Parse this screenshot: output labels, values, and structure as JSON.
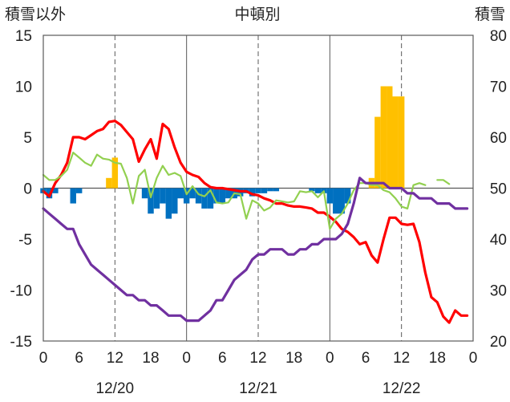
{
  "chart_data": {
    "type": "bar+line",
    "title": "中頓別",
    "left_axis_label": "積雪以外",
    "right_axis_label": "積雪",
    "left_ylim": [
      -15,
      15
    ],
    "right_ylim": [
      20,
      80
    ],
    "left_ticks": [
      "15",
      "10",
      "5",
      "0",
      "-5",
      "-10",
      "-15"
    ],
    "right_ticks": [
      "80",
      "70",
      "60",
      "50",
      "40",
      "30",
      "20"
    ],
    "x_ticks": [
      "0",
      "6",
      "12",
      "18",
      "0",
      "6",
      "12",
      "18",
      "0",
      "6",
      "12",
      "18",
      "0"
    ],
    "dates": [
      "12/20",
      "12/21",
      "12/22"
    ],
    "x_range_hours": [
      0,
      72
    ],
    "grid": "vertical dashed every 12h, solid at day boundaries, solid zero line",
    "series": [
      {
        "color": "#ff0000",
        "axis": "left",
        "kind": "line",
        "x": [
          0,
          1,
          2,
          3,
          4,
          5,
          6,
          7,
          8,
          9,
          10,
          11,
          12,
          13,
          14,
          15,
          16,
          17,
          18,
          19,
          20,
          21,
          22,
          23,
          24,
          25,
          26,
          27,
          28,
          29,
          30,
          31,
          32,
          33,
          34,
          35,
          36,
          37,
          38,
          39,
          40,
          41,
          42,
          43,
          44,
          45,
          46,
          47,
          48,
          49,
          50,
          51,
          52,
          53,
          54,
          55,
          56,
          57,
          58,
          59,
          60,
          61,
          62,
          63,
          64,
          65,
          66,
          67,
          68,
          69,
          70,
          71
        ],
        "values": [
          -0.3,
          -0.8,
          0.5,
          1.3,
          2.5,
          5.0,
          5.0,
          4.8,
          5.2,
          5.6,
          5.8,
          6.5,
          6.6,
          6.2,
          5.5,
          4.8,
          2.6,
          3.8,
          4.8,
          2.9,
          6.3,
          5.8,
          4.0,
          2.5,
          1.6,
          1.3,
          1.1,
          0.5,
          0.1,
          0.0,
          0.0,
          -0.1,
          -0.2,
          -0.3,
          -0.3,
          -0.6,
          -0.7,
          -1.0,
          -1.2,
          -1.5,
          -1.5,
          -1.7,
          -1.8,
          -1.8,
          -1.9,
          -2.0,
          -2.4,
          -2.4,
          -2.8,
          -3.3,
          -4.0,
          -4.3,
          -4.8,
          -5.5,
          -5.3,
          -6.6,
          -7.3,
          -5.0,
          -2.9,
          -2.9,
          -3.5,
          -3.6,
          -3.5,
          -5.3,
          -8.3,
          -10.7,
          -11.2,
          -12.6,
          -13.2,
          -12.0,
          -12.5,
          -12.5
        ],
        "name": ""
      },
      {
        "color": "#92d050",
        "axis": "left",
        "kind": "line",
        "x": [
          0,
          1,
          2,
          3,
          4,
          5,
          6,
          7,
          8,
          9,
          10,
          11,
          12,
          13,
          14,
          15,
          16,
          17,
          18,
          19,
          20,
          21,
          22,
          23,
          24,
          25,
          26,
          27,
          28,
          29,
          30,
          31,
          32,
          33,
          34,
          35,
          36,
          37,
          38,
          39,
          40,
          41,
          42,
          43,
          44,
          45,
          46,
          47,
          48,
          49,
          50,
          51,
          52,
          53,
          54,
          55,
          56,
          57,
          58,
          59,
          60,
          61,
          62,
          63,
          64,
          65,
          66,
          67,
          68,
          69,
          70,
          71
        ],
        "values": [
          1.3,
          0.8,
          0.8,
          1.2,
          1.8,
          3.5,
          3.0,
          2.5,
          2.2,
          3.3,
          2.9,
          2.8,
          2.5,
          2.4,
          1.0,
          -1.5,
          1.2,
          1.8,
          -0.9,
          1.0,
          2.2,
          1.3,
          1.5,
          1.2,
          -0.6,
          0.2,
          -0.6,
          -0.8,
          -0.2,
          -1.4,
          -1.5,
          -1.4,
          -0.5,
          -0.6,
          -3.0,
          -1.2,
          -1.5,
          -2.2,
          -1.9,
          -1.2,
          -1.3,
          -1.4,
          -1.3,
          -0.3,
          -0.4,
          -0.3,
          -0.9,
          -0.3,
          -4.0,
          -3.0,
          -2.5,
          -1.5,
          -0.2,
          0.5,
          0.5,
          0.3,
          0.3,
          -0.2,
          -0.4,
          -1.0,
          -1.8,
          -2.0,
          0.3,
          0.5,
          0.3,
          null,
          0.8,
          0.8,
          0.4,
          null,
          null,
          null
        ],
        "name": ""
      },
      {
        "color": "#7030a0",
        "axis": "right",
        "kind": "line",
        "x": [
          0,
          1,
          2,
          3,
          4,
          5,
          6,
          7,
          8,
          9,
          10,
          11,
          12,
          13,
          14,
          15,
          16,
          17,
          18,
          19,
          20,
          21,
          22,
          23,
          24,
          25,
          26,
          27,
          28,
          29,
          30,
          31,
          32,
          33,
          34,
          35,
          36,
          37,
          38,
          39,
          40,
          41,
          42,
          43,
          44,
          45,
          46,
          47,
          48,
          49,
          50,
          51,
          52,
          53,
          54,
          55,
          56,
          57,
          58,
          59,
          60,
          61,
          62,
          63,
          64,
          65,
          66,
          67,
          68,
          69,
          70,
          71
        ],
        "values": [
          46,
          45,
          44,
          43,
          42,
          42,
          39,
          37,
          35,
          34,
          33,
          32,
          31,
          30,
          29,
          29,
          28,
          28,
          27,
          27,
          26,
          25,
          25,
          25,
          24,
          24,
          24,
          25,
          26,
          28,
          28,
          30,
          32,
          33,
          34,
          36,
          37,
          37,
          38,
          38,
          38,
          37,
          37,
          38,
          38,
          39,
          39,
          40,
          40,
          40,
          41,
          43,
          47,
          52,
          51,
          51,
          51,
          51,
          50,
          50,
          50,
          49,
          49,
          48,
          48,
          48,
          47,
          47,
          47,
          46,
          46,
          46
        ],
        "name": ""
      },
      {
        "color": "#ffc000",
        "axis": "left",
        "kind": "bar",
        "x": [
          11,
          12,
          55,
          56,
          57,
          58,
          59,
          60
        ],
        "values": [
          1.0,
          3.0,
          1.0,
          7.0,
          10.0,
          10.0,
          9.0,
          9.0
        ],
        "name": ""
      },
      {
        "color": "#0070c0",
        "axis": "left",
        "kind": "bar",
        "x": [
          0,
          1,
          2,
          5,
          6,
          17,
          18,
          19,
          20,
          21,
          22,
          23,
          24,
          25,
          26,
          27,
          28,
          29,
          30,
          31,
          32,
          33,
          34,
          35,
          36,
          37,
          38,
          39,
          45,
          46,
          47,
          48,
          49,
          50,
          51
        ],
        "values": [
          -0.5,
          -1.0,
          -0.5,
          -1.5,
          -0.5,
          -1.0,
          -2.5,
          -2.0,
          -1.5,
          -3.0,
          -2.5,
          -1.0,
          -1.5,
          -1.0,
          -1.5,
          -2.0,
          -2.0,
          -1.5,
          -1.5,
          -1.0,
          -1.0,
          -0.8,
          -0.5,
          -0.8,
          -0.5,
          -0.5,
          -0.3,
          -0.3,
          -0.3,
          -0.5,
          -0.5,
          -1.5,
          -2.5,
          -2.5,
          -1.5
        ],
        "name": ""
      }
    ]
  }
}
